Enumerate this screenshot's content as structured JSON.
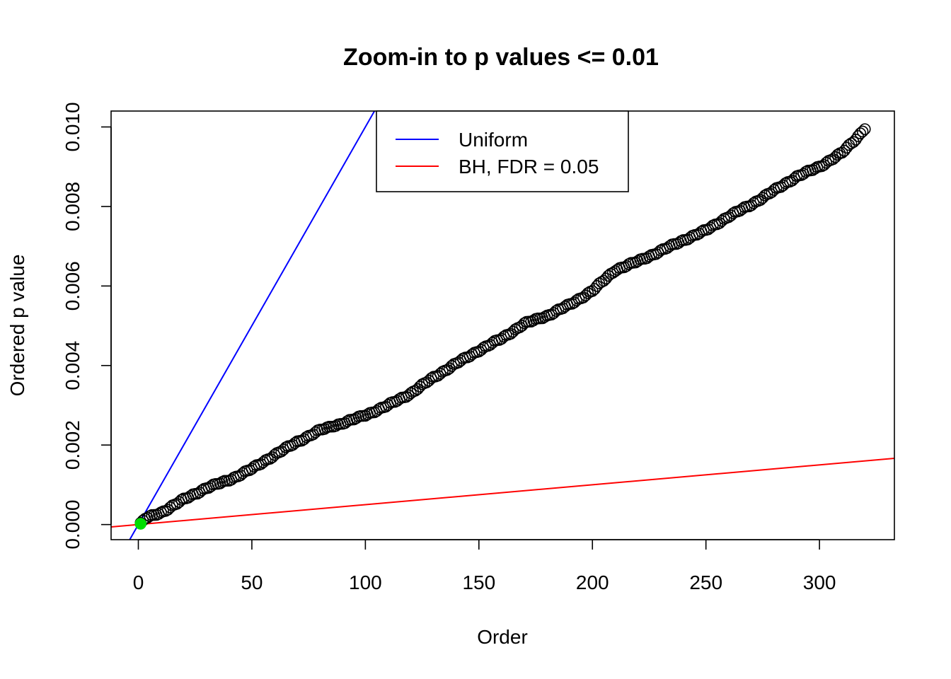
{
  "chart_data": {
    "type": "scatter",
    "title": "Zoom-in to p values <= 0.01",
    "xlabel": "Order",
    "ylabel": "Ordered p value",
    "xlim": [
      -12,
      333
    ],
    "ylim": [
      -0.00038,
      0.0104
    ],
    "x_ticks": [
      0,
      50,
      100,
      150,
      200,
      250,
      300
    ],
    "x_tick_labels": [
      "0",
      "50",
      "100",
      "150",
      "200",
      "250",
      "300"
    ],
    "y_ticks": [
      0.0,
      0.002,
      0.004,
      0.006,
      0.008,
      0.01
    ],
    "y_tick_labels": [
      "0.000",
      "0.002",
      "0.004",
      "0.006",
      "0.008",
      "0.010"
    ],
    "grid": false,
    "legend_position": "top-center",
    "series": [
      {
        "name": "",
        "style": "open-circle",
        "color": "#000000",
        "x_start": 1,
        "x_end": 320,
        "anchor_x": [
          1,
          3,
          10,
          20,
          30,
          40,
          50,
          60,
          70,
          80,
          90,
          100,
          110,
          120,
          130,
          140,
          150,
          160,
          170,
          180,
          190,
          200,
          210,
          220,
          230,
          240,
          250,
          260,
          270,
          280,
          290,
          300,
          310,
          316,
          320
        ],
        "anchor_y": [
          2e-05,
          0.00015,
          0.0003,
          0.00063,
          0.00092,
          0.00112,
          0.0014,
          0.00175,
          0.00208,
          0.00237,
          0.00255,
          0.00275,
          0.003,
          0.0033,
          0.0037,
          0.00405,
          0.00438,
          0.00468,
          0.00505,
          0.00525,
          0.00553,
          0.00588,
          0.0064,
          0.00662,
          0.00688,
          0.00715,
          0.0074,
          0.00775,
          0.00805,
          0.0084,
          0.00875,
          0.009,
          0.00935,
          0.0097,
          0.00997
        ]
      },
      {
        "name": "Uniform",
        "style": "line",
        "color": "#0000ff",
        "slope": 0.0001,
        "intercept": 0
      },
      {
        "name": "BH, FDR = 0.05",
        "style": "line",
        "color": "#ff0000",
        "slope": 5e-06,
        "intercept": 0
      }
    ],
    "highlight": {
      "x": 1,
      "y": 2e-05,
      "color": "#00dd00"
    }
  }
}
